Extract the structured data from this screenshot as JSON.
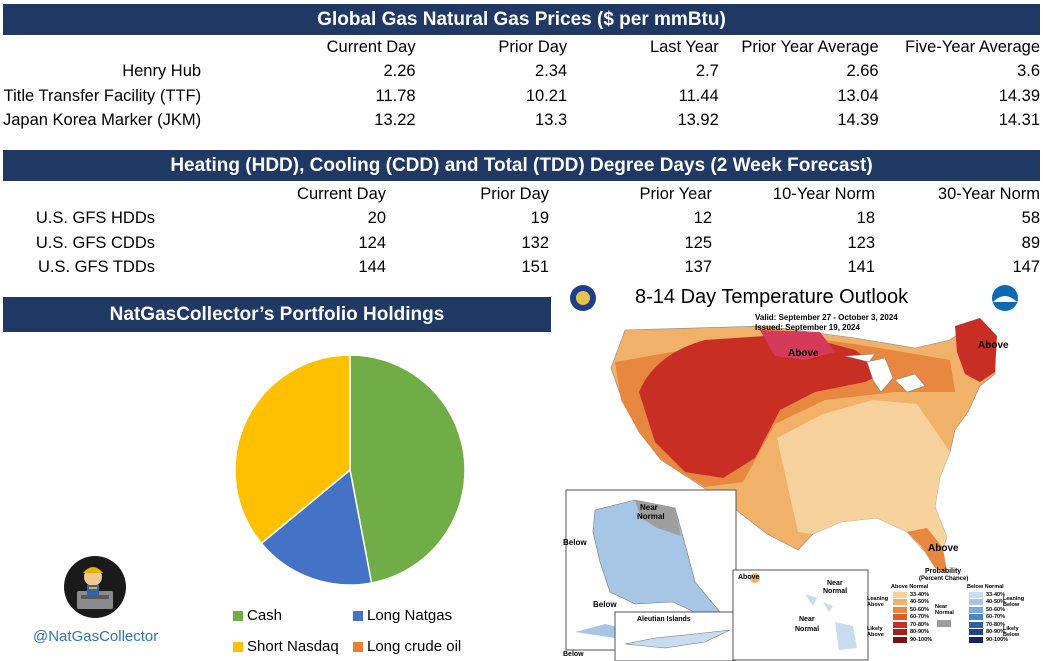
{
  "prices": {
    "title": "Global Gas Natural Gas Prices ($ per mmBtu)",
    "columns": [
      "Current Day",
      "Prior Day",
      "Last Year",
      "Prior Year Average",
      "Five-Year Average"
    ],
    "rows": [
      {
        "label": "Henry Hub",
        "values": [
          "2.26",
          "2.34",
          "2.7",
          "2.66",
          "3.6"
        ]
      },
      {
        "label": "Title Transfer Facility (TTF)",
        "values": [
          "11.78",
          "10.21",
          "11.44",
          "13.04",
          "14.39"
        ]
      },
      {
        "label": "Japan Korea Marker (JKM)",
        "values": [
          "13.22",
          "13.3",
          "13.92",
          "14.39",
          "14.31"
        ]
      }
    ]
  },
  "degree_days": {
    "title": "Heating (HDD), Cooling (CDD) and Total (TDD) Degree Days (2 Week Forecast)",
    "columns": [
      "Current Day",
      "Prior Day",
      "Prior Year",
      "10-Year Norm",
      "30-Year Norm"
    ],
    "rows": [
      {
        "label": "U.S. GFS HDDs",
        "values": [
          "20",
          "19",
          "12",
          "18",
          "58"
        ]
      },
      {
        "label": "U.S. GFS CDDs",
        "values": [
          "124",
          "132",
          "125",
          "123",
          "89"
        ]
      },
      {
        "label": "U.S. GFS TDDs",
        "values": [
          "144",
          "151",
          "137",
          "141",
          "147"
        ]
      }
    ]
  },
  "portfolio": {
    "title": "NatGasCollector’s Portfolio Holdings",
    "handle": "@NatGasCollector"
  },
  "chart_data": {
    "type": "pie",
    "title": "",
    "legend_position": "bottom",
    "slices": [
      {
        "name": "Cash",
        "value": 47,
        "color": "#70ad47"
      },
      {
        "name": "Long Natgas",
        "value": 17,
        "color": "#4472c4"
      },
      {
        "name": "Short Nasdaq",
        "value": 36,
        "color": "#ffc000"
      },
      {
        "name": "Long crude oil",
        "value": 0,
        "color": "#ed7d31"
      }
    ]
  },
  "outlook": {
    "title": "8-14 Day Temperature Outlook",
    "valid": "Valid:  September 27 - October 3, 2024",
    "issued": "Issued:  September 19, 2024",
    "labels": {
      "above_north": "Above",
      "above_ne": "Above",
      "above_fl": "Above",
      "ak_near": "Near",
      "ak_normal": "Normal",
      "ak_below1": "Below",
      "ak_below2": "Below",
      "aleutian": "Aleutian Islands",
      "below_low": "Below",
      "hi_above": "Above",
      "hi_near": "Near",
      "hi_normal": "Normal",
      "hi_near2": "Near",
      "hi_normal2": "Normal"
    },
    "legend": {
      "title": "Probability",
      "subtitle": "(Percent Chance)",
      "above_hdr": "Above Normal",
      "below_hdr": "Below Normal",
      "leaning_above": "Leaning Above",
      "likely_above": "Likely Above",
      "near_normal": "Near Normal",
      "leaning_below": "Leaning Below",
      "likely_below": "Likely Below",
      "ranges_above": [
        "33-40%",
        "40-50%",
        "50-60%",
        "60-70%",
        "70-80%",
        "80-90%",
        "90-100%"
      ],
      "ranges_below": [
        "33-40%",
        "40-50%",
        "50-60%",
        "60-70%",
        "70-80%",
        "80-90%",
        "90-100%"
      ],
      "colors_above": [
        "#f7d29c",
        "#f1b169",
        "#e8873f",
        "#dd5a2b",
        "#c92e25",
        "#a51f20",
        "#7a0f14"
      ],
      "colors_below": [
        "#c9dbef",
        "#a7c6e6",
        "#7fa9d8",
        "#4f86c4",
        "#2e62a8",
        "#1f4385",
        "#12265b"
      ]
    }
  }
}
